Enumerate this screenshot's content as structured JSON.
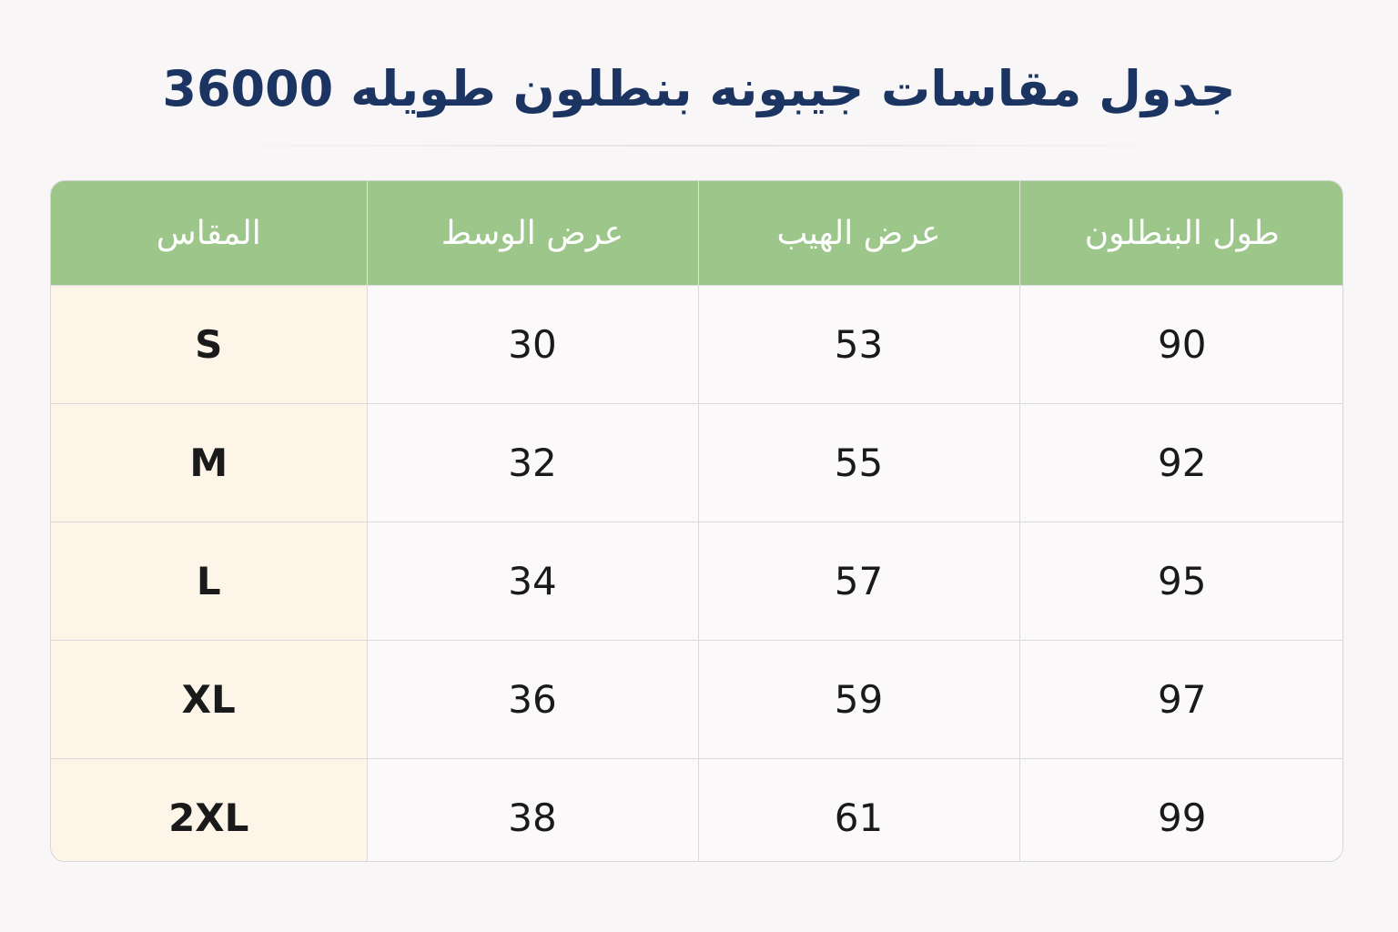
{
  "header": {
    "title": "جدول مقاسات جيبونه بنطلون طويله 36000"
  },
  "table": {
    "columns": [
      "طول البنطلون",
      "عرض الهيب",
      "عرض الوسط",
      "المقاس"
    ],
    "rows": [
      [
        90,
        53,
        30,
        "S"
      ],
      [
        92,
        55,
        32,
        "M"
      ],
      [
        95,
        57,
        34,
        "L"
      ],
      [
        97,
        59,
        36,
        "XL"
      ],
      [
        99,
        61,
        38,
        "2XL"
      ]
    ]
  }
}
